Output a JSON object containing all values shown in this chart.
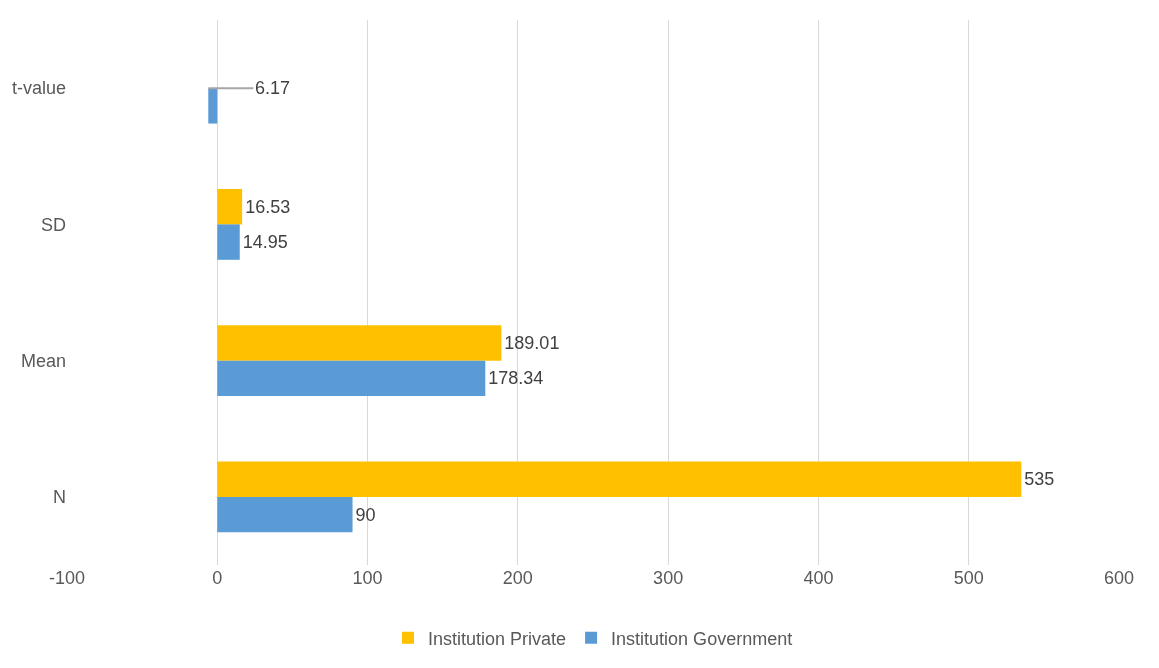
{
  "chart_data": {
    "type": "bar",
    "orientation": "horizontal",
    "categories": [
      "t-value",
      "SD",
      "Mean",
      "N"
    ],
    "series": [
      {
        "name": "Institution Private",
        "color": "#ffc000",
        "values": [
          null,
          16.53,
          189.01,
          535
        ],
        "value_labels": [
          null,
          "16.53",
          "189.01",
          "535"
        ]
      },
      {
        "name": "Institution Government",
        "color": "#5b9bd5",
        "values": [
          -6,
          14.95,
          178.34,
          90
        ],
        "value_labels": [
          null,
          "14.95",
          "178.34",
          "90"
        ]
      }
    ],
    "annotations": [
      {
        "text": "6.17",
        "x": -6,
        "y": "t-value"
      }
    ],
    "xlim": [
      -100,
      600
    ],
    "xticks": [
      -100,
      0,
      100,
      200,
      300,
      400,
      500,
      600
    ],
    "grid": "x",
    "legend": "bottom"
  }
}
